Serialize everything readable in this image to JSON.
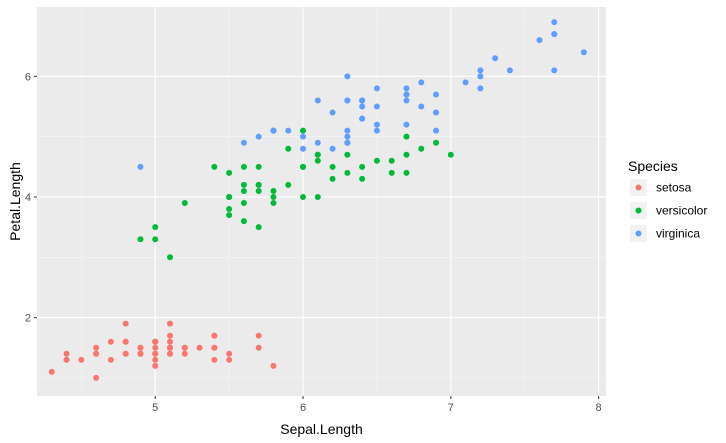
{
  "chart_data": {
    "type": "scatter",
    "xlabel": "Sepal.Length",
    "ylabel": "Petal.Length",
    "xlim": [
      4.2,
      8.05
    ],
    "ylim": [
      0.7,
      7.15
    ],
    "x_ticks": [
      5,
      6,
      7,
      8
    ],
    "y_ticks": [
      2,
      4,
      6
    ],
    "grid": true,
    "legend_placement": "right",
    "legend_title": "Species",
    "series": [
      {
        "name": "setosa",
        "color": "#F8766D",
        "points": [
          [
            5.1,
            1.4
          ],
          [
            4.9,
            1.4
          ],
          [
            4.7,
            1.3
          ],
          [
            4.6,
            1.5
          ],
          [
            5.0,
            1.4
          ],
          [
            5.4,
            1.7
          ],
          [
            4.6,
            1.4
          ],
          [
            5.0,
            1.5
          ],
          [
            4.4,
            1.4
          ],
          [
            4.9,
            1.5
          ],
          [
            5.4,
            1.5
          ],
          [
            4.8,
            1.6
          ],
          [
            4.8,
            1.4
          ],
          [
            4.3,
            1.1
          ],
          [
            5.8,
            1.2
          ],
          [
            5.7,
            1.5
          ],
          [
            5.4,
            1.3
          ],
          [
            5.1,
            1.4
          ],
          [
            5.7,
            1.7
          ],
          [
            5.1,
            1.5
          ],
          [
            5.4,
            1.7
          ],
          [
            5.1,
            1.5
          ],
          [
            4.6,
            1.0
          ],
          [
            5.1,
            1.7
          ],
          [
            4.8,
            1.9
          ],
          [
            5.0,
            1.6
          ],
          [
            5.0,
            1.6
          ],
          [
            5.2,
            1.5
          ],
          [
            5.2,
            1.4
          ],
          [
            4.7,
            1.6
          ],
          [
            4.8,
            1.6
          ],
          [
            5.4,
            1.5
          ],
          [
            5.2,
            1.5
          ],
          [
            5.5,
            1.4
          ],
          [
            4.9,
            1.5
          ],
          [
            5.0,
            1.2
          ],
          [
            5.5,
            1.3
          ],
          [
            4.9,
            1.4
          ],
          [
            4.4,
            1.3
          ],
          [
            5.1,
            1.5
          ],
          [
            5.0,
            1.3
          ],
          [
            4.5,
            1.3
          ],
          [
            4.4,
            1.3
          ],
          [
            5.0,
            1.6
          ],
          [
            5.1,
            1.9
          ],
          [
            4.8,
            1.4
          ],
          [
            5.1,
            1.6
          ],
          [
            4.6,
            1.4
          ],
          [
            5.3,
            1.5
          ],
          [
            5.0,
            1.4
          ]
        ]
      },
      {
        "name": "versicolor",
        "color": "#00BA38",
        "points": [
          [
            7.0,
            4.7
          ],
          [
            6.4,
            4.5
          ],
          [
            6.9,
            4.9
          ],
          [
            5.5,
            4.0
          ],
          [
            6.5,
            4.6
          ],
          [
            5.7,
            4.5
          ],
          [
            6.3,
            4.7
          ],
          [
            4.9,
            3.3
          ],
          [
            6.6,
            4.6
          ],
          [
            5.2,
            3.9
          ],
          [
            5.0,
            3.5
          ],
          [
            5.9,
            4.2
          ],
          [
            6.0,
            4.0
          ],
          [
            6.1,
            4.7
          ],
          [
            5.6,
            3.6
          ],
          [
            6.7,
            4.4
          ],
          [
            5.6,
            4.5
          ],
          [
            5.8,
            4.1
          ],
          [
            6.2,
            4.5
          ],
          [
            5.6,
            3.9
          ],
          [
            5.9,
            4.8
          ],
          [
            6.1,
            4.0
          ],
          [
            6.3,
            4.9
          ],
          [
            6.1,
            4.7
          ],
          [
            6.4,
            4.3
          ],
          [
            6.6,
            4.4
          ],
          [
            6.8,
            4.8
          ],
          [
            6.7,
            5.0
          ],
          [
            6.0,
            4.5
          ],
          [
            5.7,
            3.5
          ],
          [
            5.5,
            3.8
          ],
          [
            5.5,
            3.7
          ],
          [
            5.8,
            3.9
          ],
          [
            6.0,
            5.1
          ],
          [
            5.4,
            4.5
          ],
          [
            6.0,
            4.5
          ],
          [
            6.7,
            4.7
          ],
          [
            6.3,
            4.4
          ],
          [
            5.6,
            4.1
          ],
          [
            5.5,
            4.0
          ],
          [
            5.5,
            4.4
          ],
          [
            6.1,
            4.6
          ],
          [
            5.8,
            4.0
          ],
          [
            5.0,
            3.3
          ],
          [
            5.6,
            4.2
          ],
          [
            5.7,
            4.2
          ],
          [
            5.7,
            4.2
          ],
          [
            6.2,
            4.3
          ],
          [
            5.1,
            3.0
          ],
          [
            5.7,
            4.1
          ]
        ]
      },
      {
        "name": "virginica",
        "color": "#619CFF",
        "points": [
          [
            6.3,
            6.0
          ],
          [
            5.8,
            5.1
          ],
          [
            7.1,
            5.9
          ],
          [
            6.3,
            5.6
          ],
          [
            6.5,
            5.8
          ],
          [
            7.6,
            6.6
          ],
          [
            4.9,
            4.5
          ],
          [
            7.3,
            6.3
          ],
          [
            6.7,
            5.8
          ],
          [
            7.2,
            6.1
          ],
          [
            6.5,
            5.1
          ],
          [
            6.4,
            5.3
          ],
          [
            6.8,
            5.5
          ],
          [
            5.7,
            5.0
          ],
          [
            5.8,
            5.1
          ],
          [
            6.4,
            5.3
          ],
          [
            6.5,
            5.5
          ],
          [
            7.7,
            6.7
          ],
          [
            7.7,
            6.9
          ],
          [
            6.0,
            5.0
          ],
          [
            6.9,
            5.7
          ],
          [
            5.6,
            4.9
          ],
          [
            7.7,
            6.7
          ],
          [
            6.3,
            4.9
          ],
          [
            6.7,
            5.7
          ],
          [
            7.2,
            6.0
          ],
          [
            6.2,
            4.8
          ],
          [
            6.1,
            4.9
          ],
          [
            6.4,
            5.6
          ],
          [
            7.2,
            5.8
          ],
          [
            7.4,
            6.1
          ],
          [
            7.9,
            6.4
          ],
          [
            6.4,
            5.6
          ],
          [
            6.3,
            5.1
          ],
          [
            6.1,
            5.6
          ],
          [
            7.7,
            6.1
          ],
          [
            6.3,
            5.6
          ],
          [
            6.4,
            5.5
          ],
          [
            6.0,
            4.8
          ],
          [
            6.9,
            5.4
          ],
          [
            6.7,
            5.6
          ],
          [
            6.9,
            5.1
          ],
          [
            5.8,
            5.1
          ],
          [
            6.8,
            5.9
          ],
          [
            6.7,
            5.7
          ],
          [
            6.7,
            5.2
          ],
          [
            6.3,
            5.0
          ],
          [
            6.5,
            5.2
          ],
          [
            6.2,
            5.4
          ],
          [
            5.9,
            5.1
          ]
        ]
      }
    ]
  },
  "colors": {
    "panel_background": "#EBEBEB",
    "grid_major": "#FFFFFF",
    "grid_minor": "#F5F5F5",
    "tick_text": "#4D4D4D",
    "tick_mark": "#333333"
  }
}
